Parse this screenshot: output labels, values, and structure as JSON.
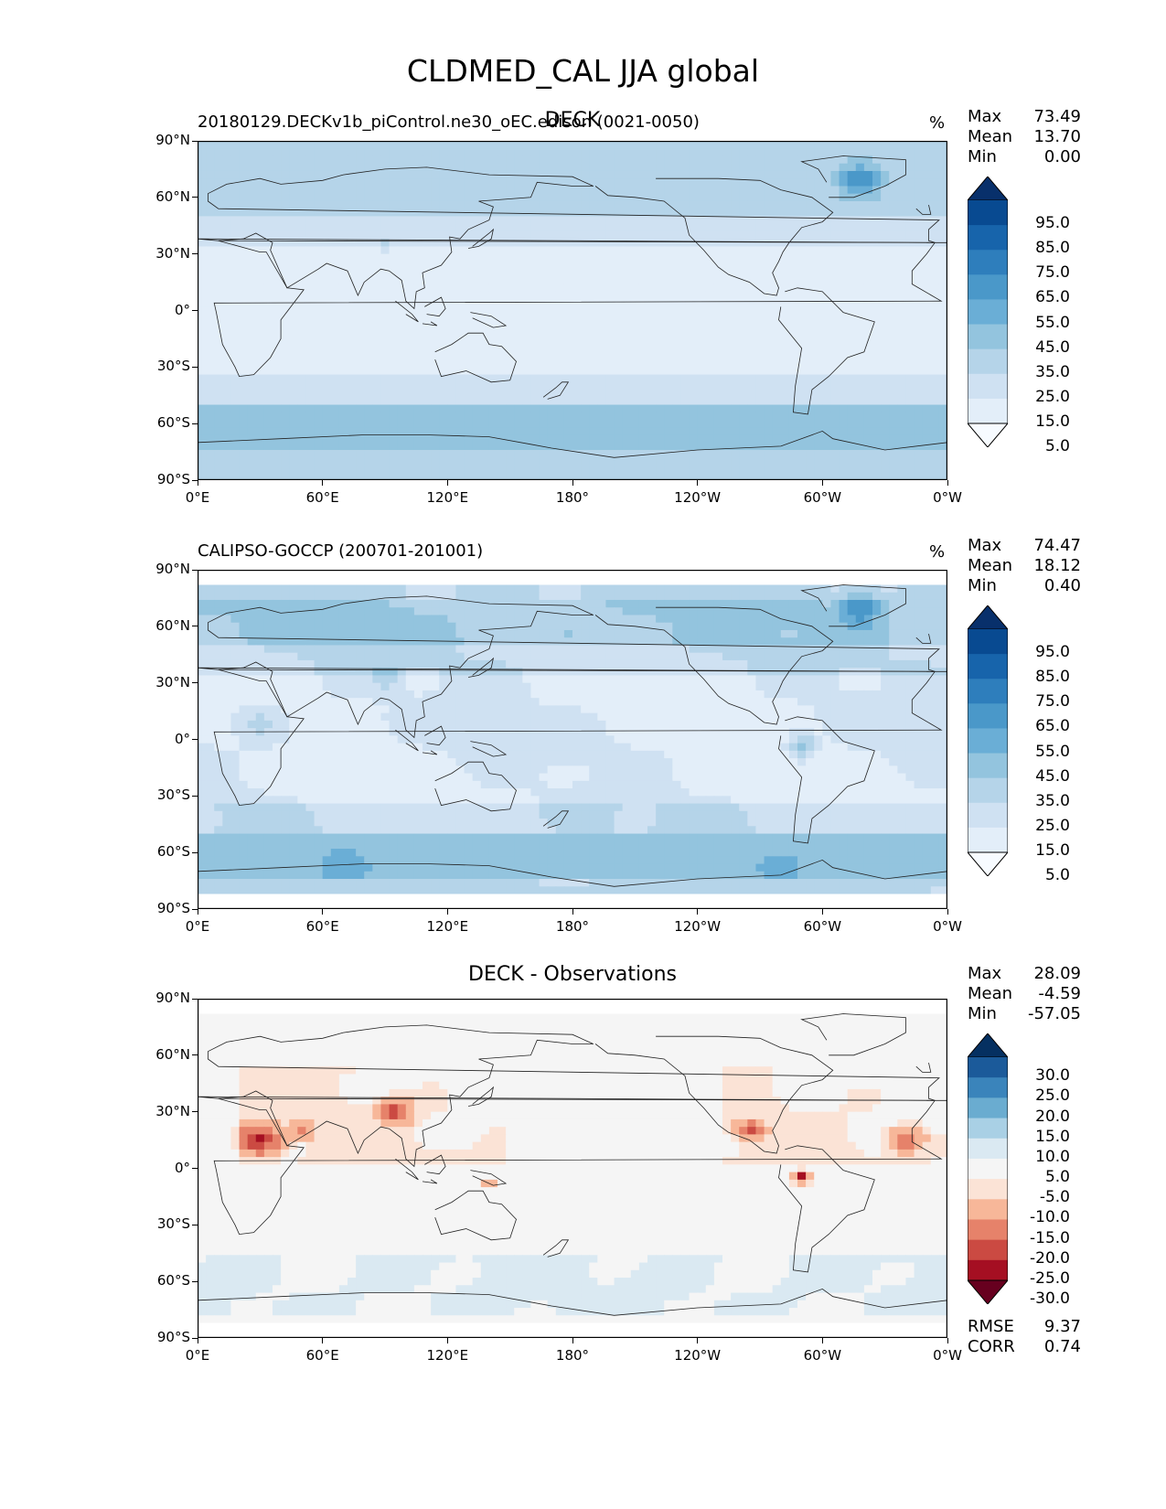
{
  "title": "CLDMED_CAL JJA global",
  "colors": {
    "seq": [
      "#f7fbff",
      "#e3eef9",
      "#cfe1f2",
      "#b5d4e9",
      "#93c4de",
      "#6aaed6",
      "#4a98c9",
      "#2e7ebc",
      "#1764ab",
      "#084a91",
      "#08306b"
    ],
    "div": [
      "#67001f",
      "#a50f22",
      "#cb4a42",
      "#e6826a",
      "#f7b799",
      "#fbe3d6",
      "#f5f5f5",
      "#dae9f2",
      "#a9d0e5",
      "#6aacd0",
      "#3a84bb",
      "#1b5a9a",
      "#053061"
    ]
  },
  "panels": [
    {
      "title": "DECK",
      "subtitle": "20180129.DECKv1b_piControl.ne30_oEC.edison (0021-0050)",
      "units": "%",
      "stats": {
        "max_label": "Max",
        "max": "73.49",
        "mean_label": "Mean",
        "mean": "13.70",
        "min_label": "Min",
        "min": "0.00"
      },
      "colorbar_ticks": [
        "95.0",
        "85.0",
        "75.0",
        "65.0",
        "55.0",
        "45.0",
        "35.0",
        "25.0",
        "15.0",
        "5.0"
      ]
    },
    {
      "title": "",
      "subtitle": "CALIPSO-GOCCP (200701-201001)",
      "units": "%",
      "stats": {
        "max_label": "Max",
        "max": "74.47",
        "mean_label": "Mean",
        "mean": "18.12",
        "min_label": "Min",
        "min": "0.40"
      },
      "colorbar_ticks": [
        "95.0",
        "85.0",
        "75.0",
        "65.0",
        "55.0",
        "45.0",
        "35.0",
        "25.0",
        "15.0",
        "5.0"
      ]
    },
    {
      "title": "DECK - Observations",
      "subtitle": "",
      "units": "",
      "stats": {
        "max_label": "Max",
        "max": "28.09",
        "mean_label": "Mean",
        "mean": "-4.59",
        "min_label": "Min",
        "min": "-57.05"
      },
      "colorbar_ticks": [
        "30.0",
        "25.0",
        "20.0",
        "15.0",
        "10.0",
        "5.0",
        "-5.0",
        "-10.0",
        "-15.0",
        "-20.0",
        "-25.0",
        "-30.0"
      ],
      "rmse_label": "RMSE",
      "rmse": "9.37",
      "corr_label": "CORR",
      "corr": "0.74"
    }
  ],
  "chart_data": [
    {
      "type": "heatmap",
      "title": "DECK",
      "subtitle": "20180129.DECKv1b_piControl.ne30_oEC.edison (0021-0050)",
      "units": "%",
      "projection": "PlateCarree, central longitude 180",
      "x_ticks": [
        "0°E",
        "60°E",
        "120°E",
        "180°",
        "120°W",
        "60°W",
        "0°W"
      ],
      "y_ticks": [
        "90°N",
        "60°N",
        "30°N",
        "0°",
        "30°S",
        "60°S",
        "90°S"
      ],
      "xlim": [
        0,
        360
      ],
      "ylim": [
        -90,
        90
      ],
      "levels": [
        0,
        5,
        15,
        25,
        35,
        45,
        55,
        65,
        75,
        85,
        95,
        100
      ],
      "colorbar_ticks": [
        "95.0",
        "85.0",
        "75.0",
        "65.0",
        "55.0",
        "45.0",
        "35.0",
        "25.0",
        "15.0",
        "5.0"
      ],
      "stats": {
        "max": 73.49,
        "mean": 13.7,
        "min": 0.0
      }
    },
    {
      "type": "heatmap",
      "subtitle": "CALIPSO-GOCCP (200701-201001)",
      "units": "%",
      "projection": "PlateCarree, central longitude 180",
      "x_ticks": [
        "0°E",
        "60°E",
        "120°E",
        "180°",
        "120°W",
        "60°W",
        "0°W"
      ],
      "y_ticks": [
        "90°N",
        "60°N",
        "30°N",
        "0°",
        "30°S",
        "60°S",
        "90°S"
      ],
      "xlim": [
        0,
        360
      ],
      "ylim": [
        -90,
        90
      ],
      "levels": [
        0,
        5,
        15,
        25,
        35,
        45,
        55,
        65,
        75,
        85,
        95,
        100
      ],
      "colorbar_ticks": [
        "95.0",
        "85.0",
        "75.0",
        "65.0",
        "55.0",
        "45.0",
        "35.0",
        "25.0",
        "15.0",
        "5.0"
      ],
      "stats": {
        "max": 74.47,
        "mean": 18.12,
        "min": 0.4
      }
    },
    {
      "type": "heatmap",
      "title": "DECK - Observations",
      "projection": "PlateCarree, central longitude 180",
      "x_ticks": [
        "0°E",
        "60°E",
        "120°E",
        "180°",
        "120°W",
        "60°W",
        "0°W"
      ],
      "y_ticks": [
        "90°N",
        "60°N",
        "30°N",
        "0°",
        "30°S",
        "60°S",
        "90°S"
      ],
      "xlim": [
        0,
        360
      ],
      "ylim": [
        -90,
        90
      ],
      "levels": [
        -30,
        -25,
        -20,
        -15,
        -10,
        -5,
        5,
        10,
        15,
        20,
        25,
        30
      ],
      "colorbar_ticks": [
        "30.0",
        "25.0",
        "20.0",
        "15.0",
        "10.0",
        "5.0",
        "-5.0",
        "-10.0",
        "-15.0",
        "-20.0",
        "-25.0",
        "-30.0"
      ],
      "stats": {
        "max": 28.09,
        "mean": -4.59,
        "min": -57.05,
        "rmse": 9.37,
        "corr": 0.74
      }
    }
  ]
}
